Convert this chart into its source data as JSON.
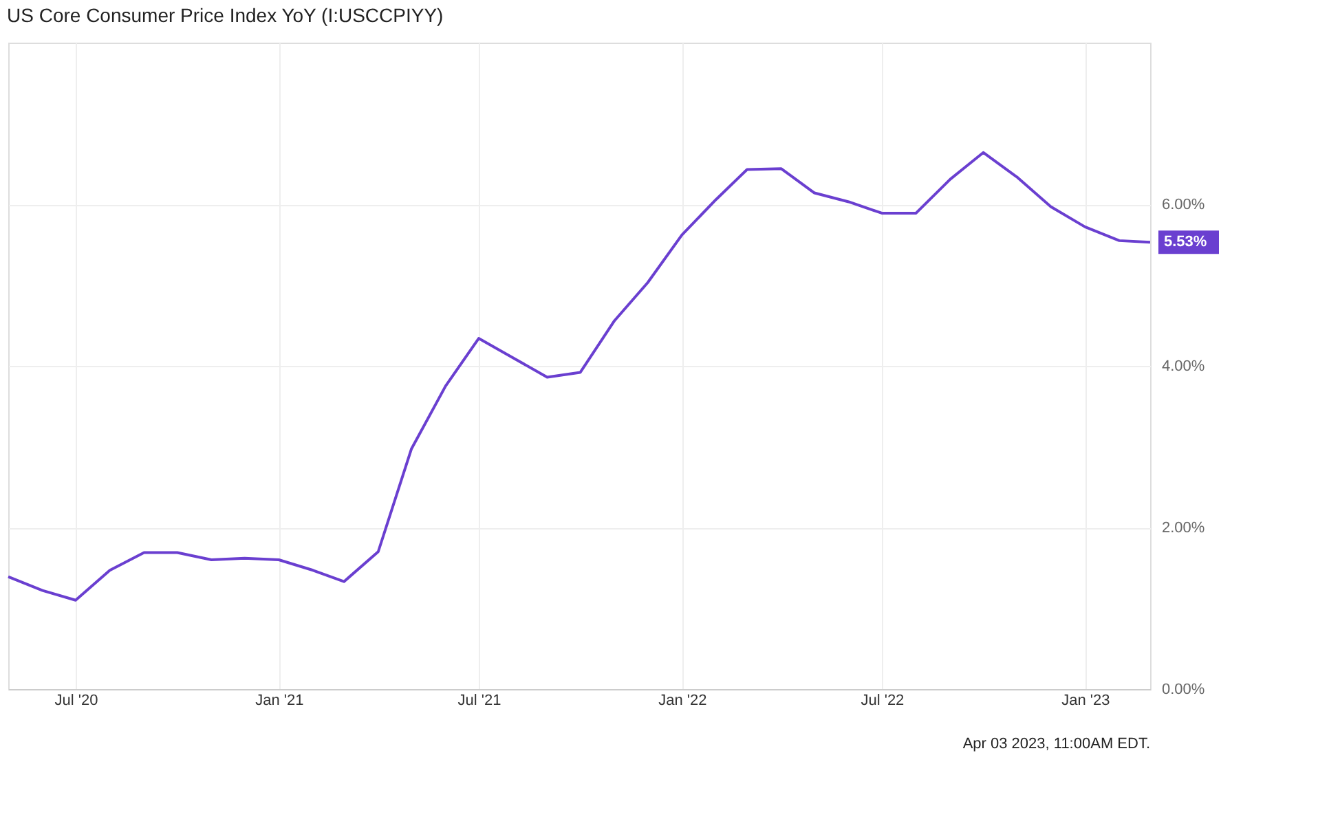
{
  "chart_data": {
    "type": "line",
    "title": "US Core Consumer Price Index YoY (I:USCCPIYY)",
    "x": [
      "2020-05",
      "2020-06",
      "2020-07",
      "2020-08",
      "2020-09",
      "2020-10",
      "2020-11",
      "2020-12",
      "2021-01",
      "2021-02",
      "2021-03",
      "2021-04",
      "2021-05",
      "2021-06",
      "2021-07",
      "2021-08",
      "2021-09",
      "2021-10",
      "2021-11",
      "2021-12",
      "2022-01",
      "2022-02",
      "2022-03",
      "2022-04",
      "2022-05",
      "2022-06",
      "2022-07",
      "2022-08",
      "2022-09",
      "2022-10",
      "2022-11",
      "2022-12",
      "2023-01",
      "2023-02",
      "2023-03"
    ],
    "series": [
      {
        "color": "#6a3fd0",
        "values": [
          1.39,
          1.22,
          1.1,
          1.47,
          1.69,
          1.69,
          1.6,
          1.62,
          1.6,
          1.47,
          1.33,
          1.7,
          2.97,
          3.75,
          4.34,
          4.1,
          3.86,
          3.92,
          4.56,
          5.03,
          5.62,
          6.06,
          6.43,
          6.44,
          6.14,
          6.03,
          5.89,
          5.89,
          6.31,
          6.64,
          6.33,
          5.97,
          5.72,
          5.55,
          5.53
        ]
      }
    ],
    "xlim": [
      "2020-05",
      "2023-03"
    ],
    "xticks": [
      {
        "value": "2020-07",
        "label": "Jul '20"
      },
      {
        "value": "2021-01",
        "label": "Jan '21"
      },
      {
        "value": "2021-07",
        "label": "Jul '21"
      },
      {
        "value": "2022-01",
        "label": "Jan '22"
      },
      {
        "value": "2022-07",
        "label": "Jul '22"
      },
      {
        "value": "2023-01",
        "label": "Jan '23"
      }
    ],
    "ylim": [
      0,
      8
    ],
    "yticks": [
      {
        "value": 0,
        "label": "0.00%"
      },
      {
        "value": 2,
        "label": "2.00%"
      },
      {
        "value": 4,
        "label": "4.00%"
      },
      {
        "value": 6,
        "label": "6.00%"
      }
    ],
    "grid": true,
    "marker": "none",
    "line_style": "solid",
    "annotations": [
      {
        "text": "5.53%",
        "x": "2023-03",
        "y": 5.53
      },
      "Apr 03 2023, 11:00AM EDT."
    ]
  }
}
